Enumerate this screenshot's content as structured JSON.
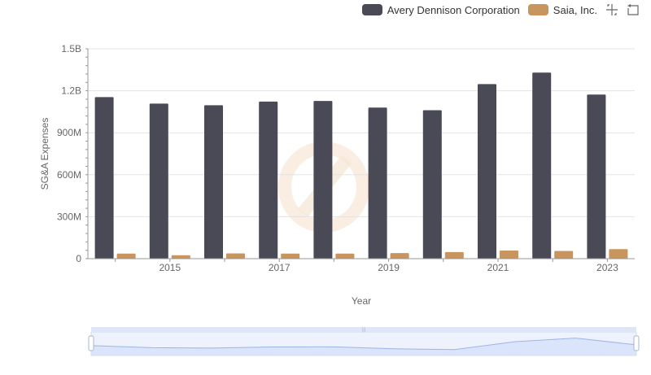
{
  "chart_data": {
    "type": "bar",
    "title": "",
    "xlabel": "Year",
    "ylabel": "SG&A Expenses",
    "x": [
      2014,
      2015,
      2016,
      2017,
      2018,
      2019,
      2020,
      2021,
      2022,
      2023
    ],
    "x_tick_labels": [
      "2015",
      "2017",
      "2019",
      "2021",
      "2023"
    ],
    "y_tick_labels": [
      "0",
      "300M",
      "600M",
      "900M",
      "1.2B",
      "1.5B"
    ],
    "y_ticks": [
      0,
      300000000,
      600000000,
      900000000,
      1200000000,
      1500000000
    ],
    "ylim": [
      0,
      1500000000
    ],
    "grid": true,
    "legend_position": "top-right",
    "series": [
      {
        "name": "Avery Dennison Corporation",
        "color": "#4a4956",
        "values": [
          1155000000,
          1108000000,
          1097000000,
          1123000000,
          1127000000,
          1080000000,
          1061000000,
          1248000000,
          1330000000,
          1173000000
        ]
      },
      {
        "name": "Saia, Inc.",
        "color": "#c8955e",
        "values": [
          36000000,
          25000000,
          38000000,
          36000000,
          36000000,
          40000000,
          47000000,
          58000000,
          55000000,
          68000000
        ]
      }
    ]
  },
  "toolbar": {
    "zoom_icon": "crosshair-zoom-icon",
    "reset_icon": "reset-zoom-icon"
  },
  "slider": {
    "handle_label": "|||"
  }
}
